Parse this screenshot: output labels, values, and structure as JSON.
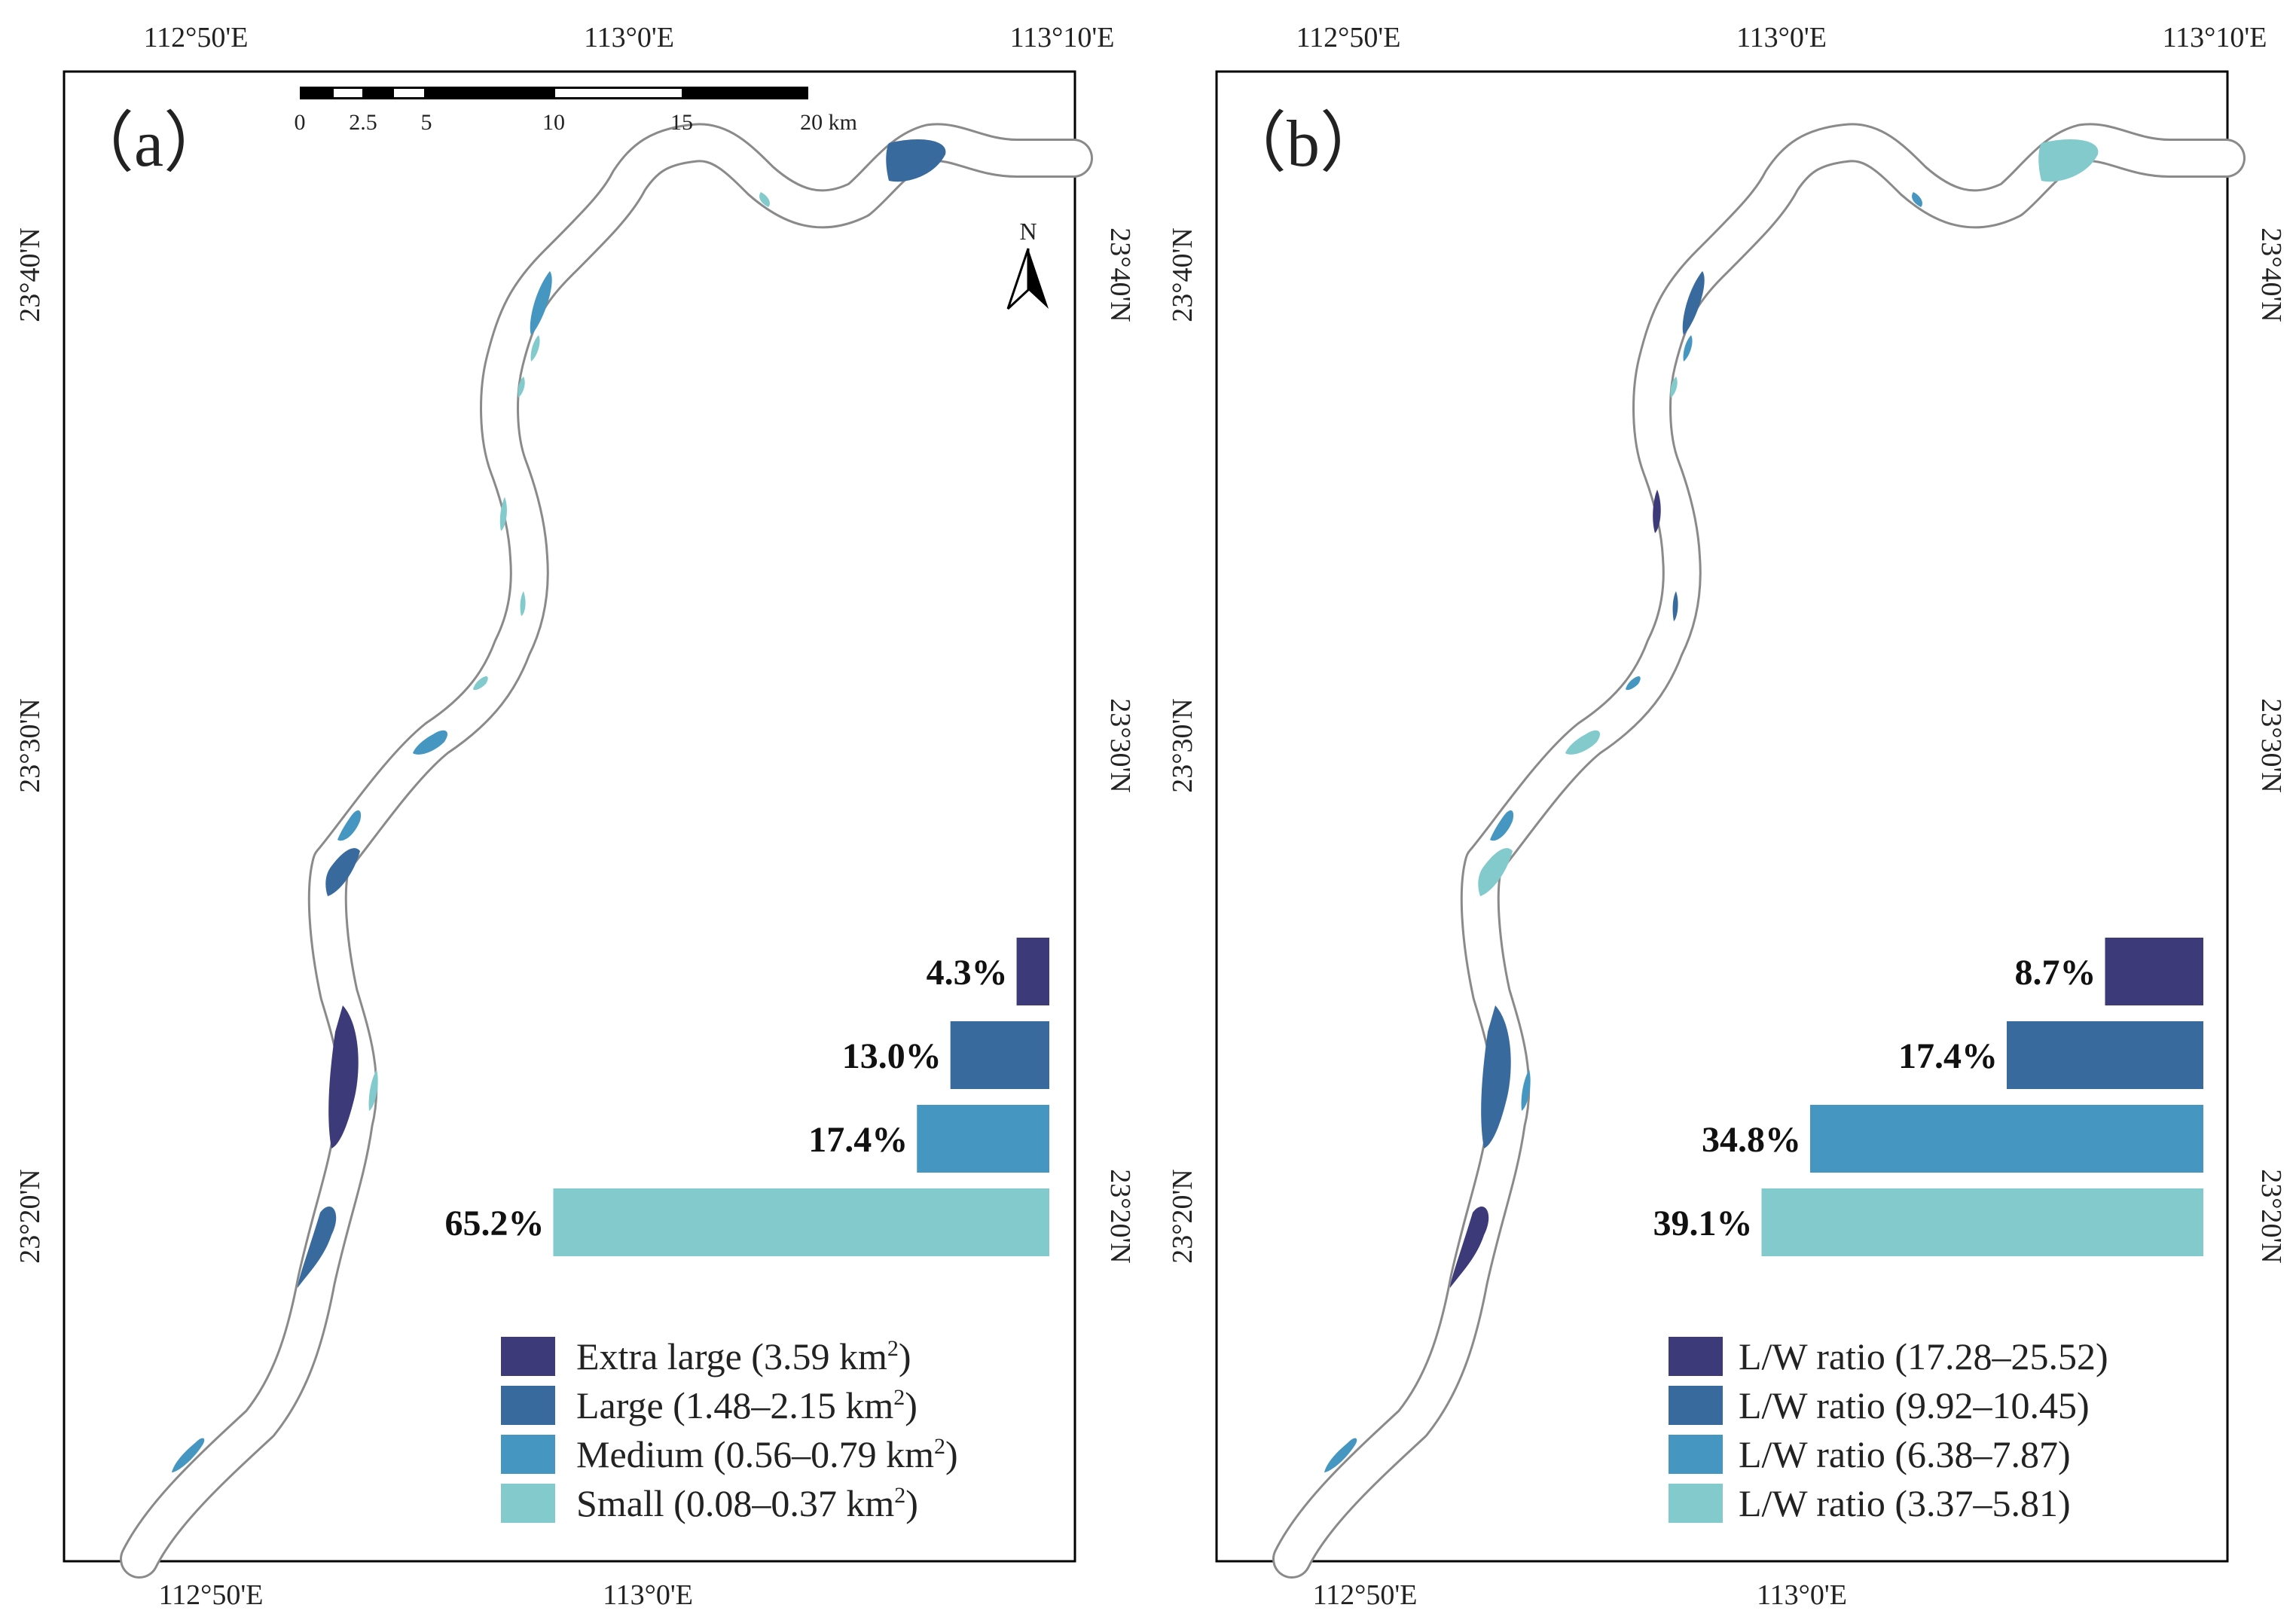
{
  "colors": {
    "extra_large": "#3c3a78",
    "large": "#386a9e",
    "medium": "#4596c0",
    "small": "#82cacc",
    "river_outline": "#8a8a8a",
    "frame": "#000000"
  },
  "panels": [
    {
      "label": "（a）",
      "top_ticks": [
        "112°50'E",
        "113°0'E",
        "113°10'E"
      ],
      "bottom_ticks": [
        "112°50'E",
        "113°0'E"
      ],
      "left_ticks": [
        "23°40'N",
        "23°30'N",
        "23°20'N"
      ],
      "right_ticks": [
        "23°40'N",
        "23°30'N",
        "23°20'N"
      ],
      "north_arrow": "N",
      "scale_bar": {
        "labels": [
          "0",
          "2.5",
          "5",
          "10",
          "15",
          "20 km"
        ]
      },
      "bars": [
        {
          "label": "4.3%",
          "value": 4.3
        },
        {
          "label": "13.0%",
          "value": 13.0
        },
        {
          "label": "17.4%",
          "value": 17.4
        },
        {
          "label": "65.2%",
          "value": 65.2
        }
      ],
      "legend": [
        {
          "text": "Extra large (3.59 km",
          "sup": "2",
          "close": ")"
        },
        {
          "text": "Large (1.48–2.15 km",
          "sup": "2",
          "close": ")"
        },
        {
          "text": "Medium (0.56–0.79 km",
          "sup": "2",
          "close": ")"
        },
        {
          "text": "Small (0.08–0.37 km",
          "sup": "2",
          "close": ")"
        }
      ]
    },
    {
      "label": "（b）",
      "top_ticks": [
        "112°50'E",
        "113°0'E",
        "113°10'E"
      ],
      "bottom_ticks": [
        "112°50'E",
        "113°0'E"
      ],
      "left_ticks": [
        "23°40'N",
        "23°30'N",
        "23°20'N"
      ],
      "right_ticks": [
        "23°40'N",
        "23°30'N",
        "23°20'N"
      ],
      "bars": [
        {
          "label": "8.7%",
          "value": 8.7
        },
        {
          "label": "17.4%",
          "value": 17.4
        },
        {
          "label": "34.8%",
          "value": 34.8
        },
        {
          "label": "39.1%",
          "value": 39.1
        }
      ],
      "legend": [
        {
          "text": "L/W ratio (17.28–25.52)"
        },
        {
          "text": "L/W ratio (9.92–10.45)"
        },
        {
          "text": "L/W ratio (6.38–7.87)"
        },
        {
          "text": "L/W ratio (3.37–5.81)"
        }
      ]
    }
  ]
}
